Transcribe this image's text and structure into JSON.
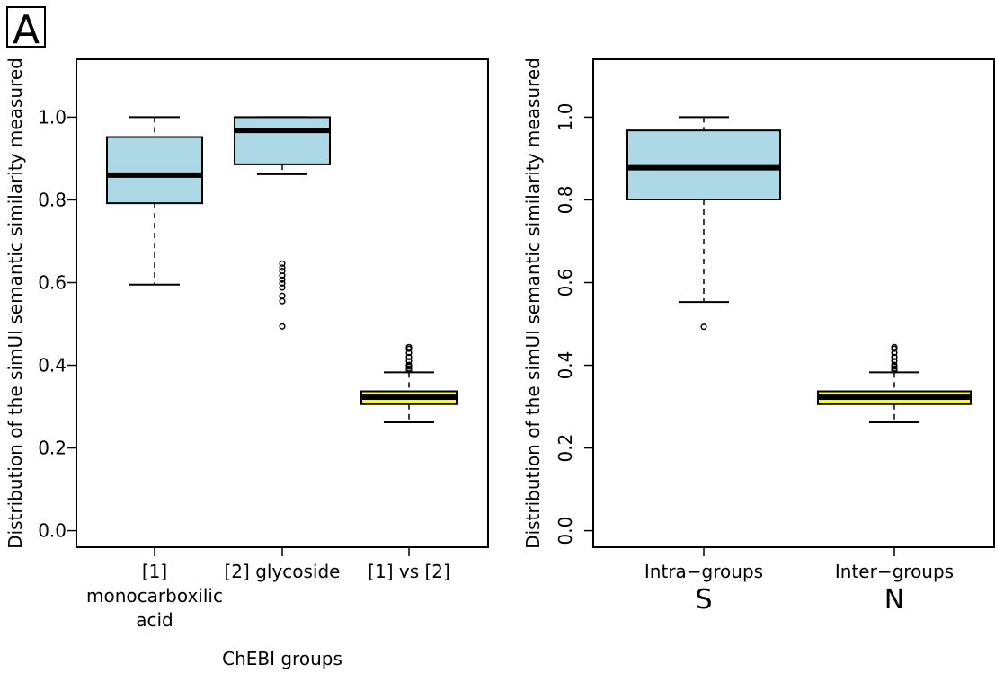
{
  "panel_label": "A",
  "chart_data": [
    {
      "type": "boxplot",
      "ylabel": "Distribution of the simUI semantic similarity measured",
      "xlabel": "ChEBI groups",
      "ylim": [
        -0.04,
        1.14
      ],
      "yticks": [
        "0.0",
        "0.2",
        "0.4",
        "0.6",
        "0.8",
        "1.0"
      ],
      "ytick_values": [
        0.0,
        0.2,
        0.4,
        0.6,
        0.8,
        1.0
      ],
      "ytick_orientation": "horizontal",
      "categories": [
        {
          "lines": [
            "[1]",
            "monocarboxilic",
            "acid"
          ]
        },
        {
          "lines": [
            "[2] glycoside"
          ]
        },
        {
          "lines": [
            "[1] vs [2]"
          ]
        }
      ],
      "boxes": [
        {
          "whisker_low": 0.595,
          "q1": 0.792,
          "median": 0.86,
          "q3": 0.952,
          "whisker_high": 1.0,
          "outliers": [],
          "fill": "#add8e6"
        },
        {
          "whisker_low": 0.862,
          "q1": 0.886,
          "median": 0.968,
          "q3": 1.0,
          "whisker_high": 1.0,
          "outliers": [
            0.494,
            0.555,
            0.568,
            0.588,
            0.598,
            0.607,
            0.617,
            0.628,
            0.636,
            0.646
          ],
          "fill": "#add8e6"
        },
        {
          "whisker_low": 0.262,
          "q1": 0.306,
          "median": 0.323,
          "q3": 0.337,
          "whisker_high": 0.383,
          "outliers": [
            0.388,
            0.392,
            0.397,
            0.401,
            0.41,
            0.42,
            0.43,
            0.44,
            0.444
          ],
          "fill": "#ffff00"
        }
      ]
    },
    {
      "type": "boxplot",
      "ylabel": "Distribution of the simUI semantic similarity measured",
      "xlabel": "",
      "ylim": [
        -0.04,
        1.14
      ],
      "yticks": [
        "0.0",
        "0.2",
        "0.4",
        "0.6",
        "0.8",
        "1.0"
      ],
      "ytick_values": [
        0.0,
        0.2,
        0.4,
        0.6,
        0.8,
        1.0
      ],
      "ytick_orientation": "vertical",
      "categories": [
        {
          "lines": [
            "Intra−groups"
          ],
          "sub": "S"
        },
        {
          "lines": [
            "Inter−groups"
          ],
          "sub": "N"
        }
      ],
      "boxes": [
        {
          "whisker_low": 0.553,
          "q1": 0.801,
          "median": 0.878,
          "q3": 0.968,
          "whisker_high": 1.0,
          "outliers": [
            0.493
          ],
          "fill": "#add8e6"
        },
        {
          "whisker_low": 0.262,
          "q1": 0.306,
          "median": 0.323,
          "q3": 0.337,
          "whisker_high": 0.383,
          "outliers": [
            0.388,
            0.392,
            0.397,
            0.401,
            0.41,
            0.42,
            0.43,
            0.44,
            0.444
          ],
          "fill": "#ffff00"
        }
      ]
    }
  ]
}
